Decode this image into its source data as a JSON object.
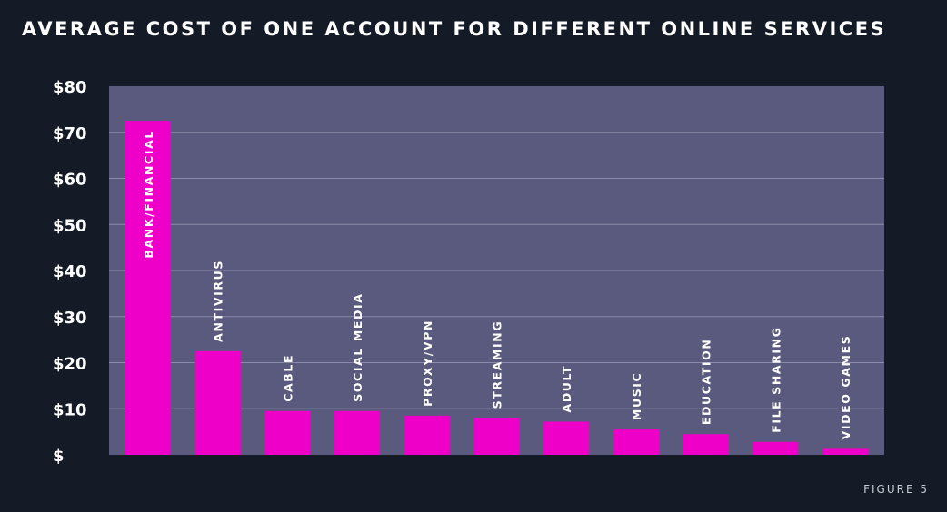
{
  "figure_label": "FIGURE 5",
  "colors": {
    "background": "#141b26",
    "plot_area": "#5a5a7e",
    "bar": "#ee00c8",
    "gridline": "#8a8aaa",
    "text": "#ffffff"
  },
  "chart_data": {
    "type": "bar",
    "title": "AVERAGE COST OF ONE ACCOUNT FOR DIFFERENT ONLINE SERVICES",
    "xlabel": "",
    "ylabel": "",
    "categories": [
      "BANK/FINANCIAL",
      "ANTIVIRUS",
      "CABLE",
      "SOCIAL MEDIA",
      "PROXY/VPN",
      "STREAMING",
      "ADULT",
      "MUSIC",
      "EDUCATION",
      "FILE SHARING",
      "VIDEO GAMES"
    ],
    "values": [
      72.5,
      22.5,
      9.5,
      9.5,
      8.5,
      8,
      7.2,
      5.5,
      4.5,
      2.8,
      1.3
    ],
    "ylim": [
      0,
      80
    ],
    "yticks": [
      0,
      10,
      20,
      30,
      40,
      50,
      60,
      70,
      80
    ],
    "ytick_labels": [
      "$",
      "$10",
      "$20",
      "$30",
      "$40",
      "$50",
      "$60",
      "$70",
      "$80"
    ],
    "grid": true,
    "legend": "none"
  }
}
